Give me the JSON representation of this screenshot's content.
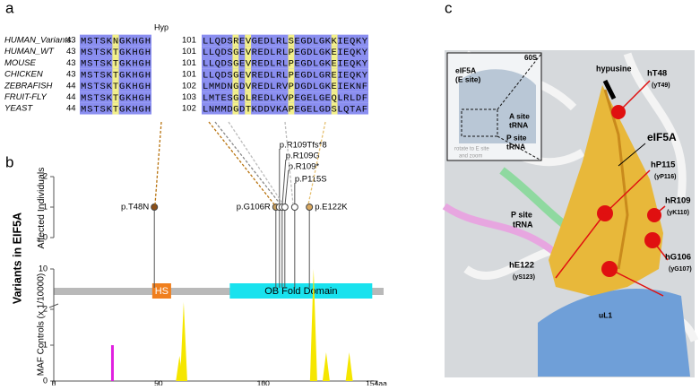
{
  "panels": [
    "a",
    "b",
    "c"
  ],
  "alignment": {
    "hyp_label": "Hyp",
    "rows": [
      {
        "species": "HUMAN_Variants",
        "start1": "43",
        "seq1": "MSTSKNGKHGH",
        "start2": "101",
        "seq2": "LLQDSREVGEDLRLSEGDLGKKIEQKY"
      },
      {
        "species": "HUMAN_WT",
        "start1": "43",
        "seq1": "MSTSKTGKHGH",
        "start2": "101",
        "seq2": "LLQDSGEVREDLRLPEGDLGKEIEQKY"
      },
      {
        "species": "MOUSE",
        "start1": "43",
        "seq1": "MSTSKTGKHGH",
        "start2": "101",
        "seq2": "LLQDSGEVREDLRLPEGDLGKEIEQKY"
      },
      {
        "species": "CHICKEN",
        "start1": "43",
        "seq1": "MSTSKTGKHGH",
        "start2": "101",
        "seq2": "LLQDSGEVREDLRLPEGDLGREIEQKY"
      },
      {
        "species": "ZEBRAFISH",
        "start1": "44",
        "seq1": "MSTSKTGKHGH",
        "start2": "102",
        "seq2": "LMMDNGDVREDLRVPDGDLGKEIEKNF"
      },
      {
        "species": "FRUIT-FLY",
        "start1": "44",
        "seq1": "MSTSKTGKHGH",
        "start2": "103",
        "seq2": "LMTESGDLREDLKVPEGELGEQLRLDF"
      },
      {
        "species": "YEAST",
        "start1": "44",
        "seq1": "MSTSKTGKHGH",
        "start2": "102",
        "seq2": "LNMMDGDTKDDVKAPEGELGDSLQTAF"
      }
    ]
  },
  "lollipop": {
    "ylabel": "Affected Individuals",
    "group_label": "Variants in EIF5A",
    "yticks": [
      0,
      1,
      2
    ],
    "ylim": [
      0,
      2
    ],
    "variants": [
      {
        "label": "p.T48N",
        "position": 48,
        "individuals": 1
      },
      {
        "label": "p.G106R",
        "position": 106,
        "individuals": 1
      },
      {
        "label": "p.R109Tfs*8",
        "position": 109,
        "individuals": 1
      },
      {
        "label": "p.R109G",
        "position": 109,
        "individuals": 1
      },
      {
        "label": "p.R109*",
        "position": 109,
        "individuals": 1
      },
      {
        "label": "p.P115S",
        "position": 115,
        "individuals": 1
      },
      {
        "label": "p.E122K",
        "position": 122,
        "individuals": 1
      }
    ],
    "domains": [
      {
        "label": "HS",
        "start": 47,
        "end": 56,
        "color": "#f07f1e"
      },
      {
        "label": "OB Fold Domain",
        "start": 84,
        "end": 152,
        "color": "#19e2ee"
      }
    ]
  },
  "controls": {
    "ylabel": "MAF Controls (x 1/10000)",
    "yticks": [
      0,
      1,
      2,
      10
    ],
    "xticks": [
      0,
      50,
      100,
      {
        "value": 154,
        "label": "154aa"
      }
    ],
    "xlim": [
      0,
      154
    ],
    "peaks": [
      {
        "position": 28,
        "value": 1,
        "color": "#e020e0"
      },
      {
        "position": 60,
        "value": 0.7,
        "color": "#f5e600"
      },
      {
        "position": 62,
        "value": 2.2,
        "color": "#f5e600"
      },
      {
        "position": 124,
        "value": 10,
        "color": "#f5e600"
      },
      {
        "position": 130,
        "value": 0.8,
        "color": "#f5e600"
      },
      {
        "position": 141,
        "value": 0.8,
        "color": "#f5e600"
      }
    ]
  },
  "structure": {
    "labels": [
      "60S",
      "eIF5A",
      "(E site)",
      "A site",
      "tRNA",
      "P site",
      "tRNA",
      "rotate to E site",
      "and zoom",
      "hypusine",
      "hT48",
      "(yT49)",
      "eIF5A",
      "hP115",
      "(yP116)",
      "hR109",
      "(yK110)",
      "hG106",
      "(yG107)",
      "hE122",
      "(yS123)",
      "P site",
      "tRNA",
      "uL1"
    ]
  }
}
